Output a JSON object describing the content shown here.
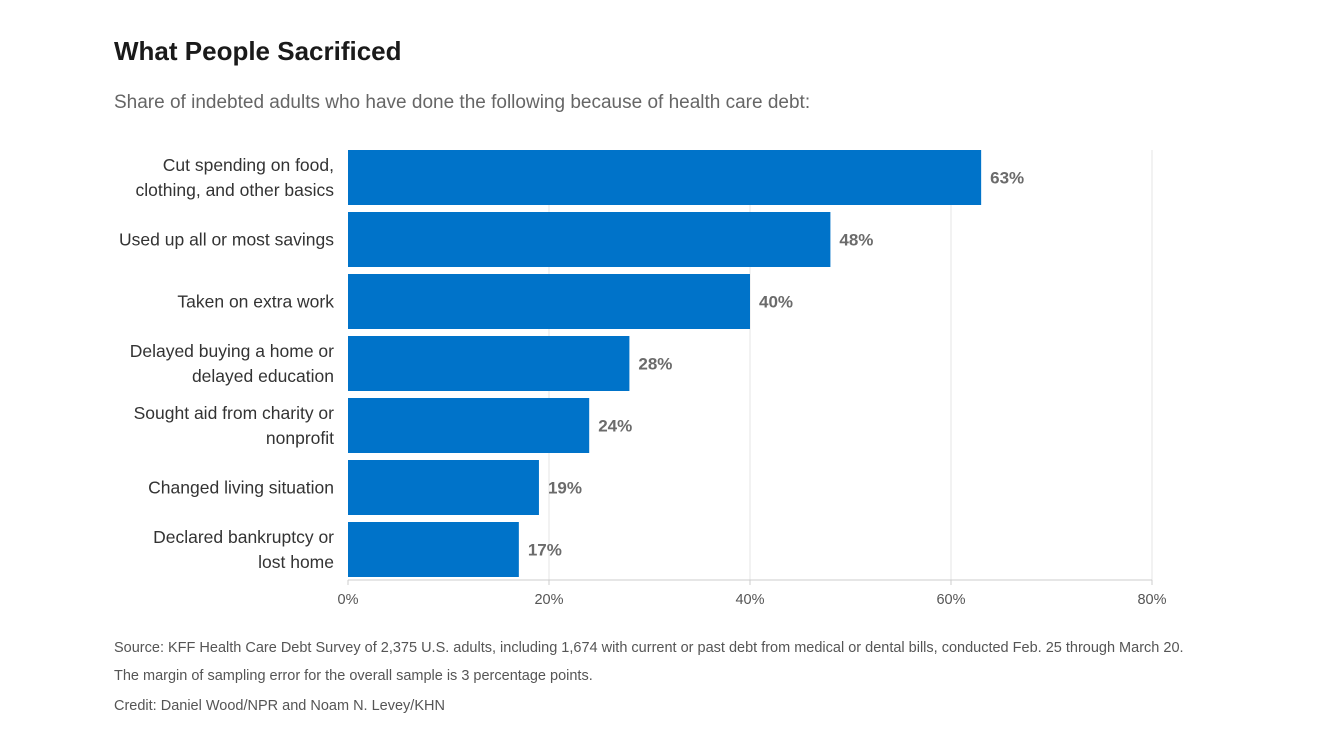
{
  "colors": {
    "bar": "#0073c9",
    "grid": "#e6e6e6",
    "axis": "#cccccc",
    "label_text": "#333333",
    "value_text": "#6b6b6b",
    "tick_text": "#555555"
  },
  "header": {
    "title": "What People Sacrificed",
    "subtitle": "Share of indebted adults who have done the following because of health care debt:"
  },
  "chart_data": {
    "type": "bar",
    "orientation": "horizontal",
    "categories": [
      [
        "Cut spending on food,",
        "clothing, and other basics"
      ],
      [
        "Used up all or most savings"
      ],
      [
        "Taken on extra work"
      ],
      [
        "Delayed buying a home or",
        "delayed education"
      ],
      [
        "Sought aid from charity or",
        "nonprofit"
      ],
      [
        "Changed living situation"
      ],
      [
        "Declared bankruptcy or",
        "lost home"
      ]
    ],
    "values": [
      63,
      48,
      40,
      28,
      24,
      19,
      17
    ],
    "value_labels": [
      "63%",
      "48%",
      "40%",
      "28%",
      "24%",
      "19%",
      "17%"
    ],
    "xlim": [
      0,
      80
    ],
    "xticks": [
      0,
      20,
      40,
      60,
      80
    ],
    "xtick_labels": [
      "0%",
      "20%",
      "40%",
      "60%",
      "80%"
    ],
    "grid": true,
    "legend": "none"
  },
  "footer": {
    "source": "Source: KFF Health Care Debt Survey of 2,375 U.S. adults, including 1,674 with current or past debt from medical or dental bills, conducted Feb. 25 through March 20. The margin of sampling error for the overall sample is 3 percentage points.",
    "credit": "Credit: Daniel Wood/NPR and Noam N. Levey/KHN"
  }
}
